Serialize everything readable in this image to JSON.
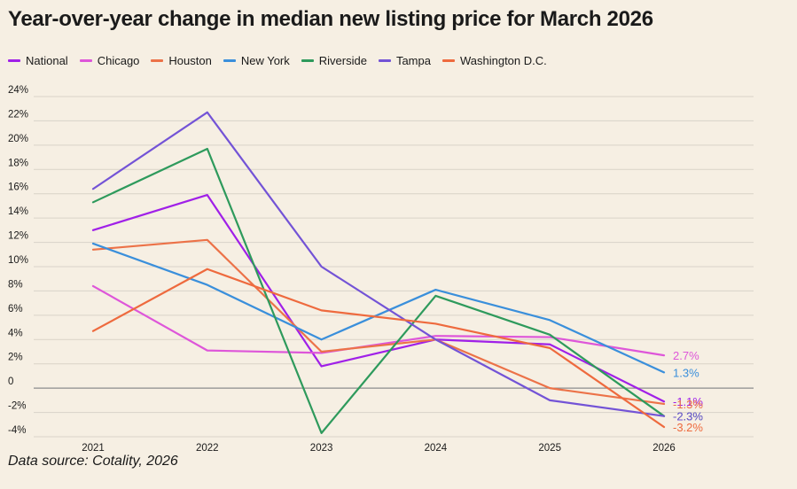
{
  "title": "Year-over-year change in median new listing price for March 2026",
  "source": "Data source: Cotality, 2026",
  "chart_data": {
    "type": "line",
    "title": "Year-over-year change in median new listing price for March 2026",
    "xlabel": "",
    "ylabel": "",
    "x": [
      "2021",
      "2022",
      "2023",
      "2024",
      "2025",
      "2026"
    ],
    "ylim": [
      -4,
      24
    ],
    "yticks": [
      24,
      22,
      20,
      18,
      16,
      14,
      12,
      10,
      8,
      6,
      4,
      2,
      0,
      -2,
      -4
    ],
    "ytick_labels": [
      "24%",
      "22%",
      "20%",
      "18%",
      "16%",
      "14%",
      "12%",
      "10%",
      "8%",
      "6%",
      "4%",
      "2%",
      "0",
      "-2%",
      "-4%"
    ],
    "grid": true,
    "legend_position": "top",
    "series": [
      {
        "name": "National",
        "color": "#a020e8",
        "values": [
          13.0,
          15.9,
          1.8,
          4.0,
          3.6,
          -1.1
        ],
        "end_label": "-1.1%"
      },
      {
        "name": "Chicago",
        "color": "#de56d9",
        "values": [
          8.4,
          3.1,
          2.9,
          4.3,
          4.2,
          2.7
        ],
        "end_label": "2.7%"
      },
      {
        "name": "Houston",
        "color": "#ec7248",
        "values": [
          11.4,
          12.2,
          3.0,
          4.0,
          0.0,
          -1.3
        ],
        "end_label": "-1.3%"
      },
      {
        "name": "New York",
        "color": "#3a8fdb",
        "values": [
          11.9,
          8.5,
          4.0,
          8.1,
          5.6,
          1.3
        ],
        "end_label": "1.3%"
      },
      {
        "name": "Riverside",
        "color": "#2e9a5c",
        "values": [
          15.3,
          19.7,
          -3.7,
          7.6,
          4.4,
          -2.3
        ],
        "end_label": "-2.3%"
      },
      {
        "name": "Tampa",
        "color": "#7353d6",
        "values": [
          16.4,
          22.7,
          10.0,
          4.0,
          -1.0,
          -2.3
        ],
        "end_label": "-2.3%"
      },
      {
        "name": "Washington D.C.",
        "color": "#ee6a3e",
        "values": [
          4.7,
          9.8,
          6.4,
          5.3,
          3.3,
          -3.2
        ],
        "end_label": "-3.2%"
      }
    ]
  }
}
